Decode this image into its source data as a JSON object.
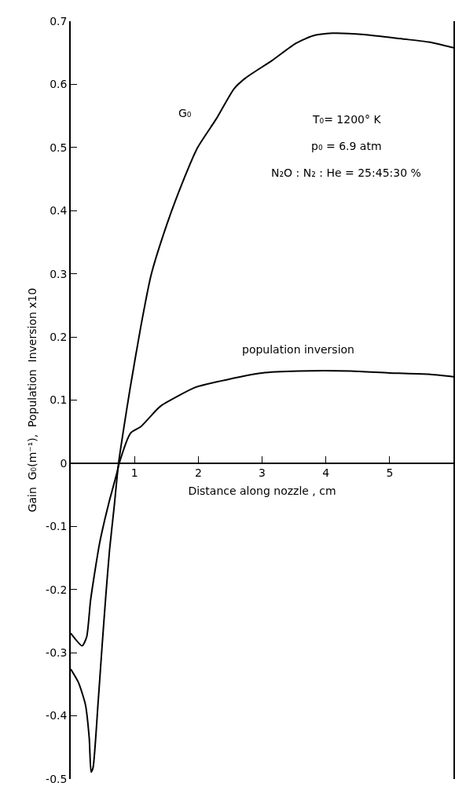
{
  "chart_data": {
    "type": "line",
    "xlabel": "Distance along nozzle , cm",
    "ylabel": "Gain  G₀(m⁻¹),  Population  Inversion x10",
    "xlim": [
      0,
      6
    ],
    "ylim": [
      -0.5,
      0.7
    ],
    "xticks": [
      1,
      2,
      3,
      4,
      5
    ],
    "yticks": [
      0.7,
      0.6,
      0.5,
      0.4,
      0.3,
      0.2,
      0.1,
      0,
      -0.1,
      -0.2,
      -0.3,
      -0.4,
      -0.5
    ],
    "grid": false,
    "legend": false,
    "marker": "none",
    "line_style": "solid",
    "series": [
      {
        "name": "G₀",
        "color": "#000000",
        "x": [
          0,
          0.12,
          0.23,
          0.29,
          0.32,
          0.35,
          0.43,
          0.49,
          0.55,
          0.61,
          0.68,
          0.75,
          0.84,
          0.93,
          1.1,
          1.26,
          1.51,
          1.75,
          1.99,
          2.28,
          2.56,
          2.74,
          3.16,
          3.53,
          3.8,
          4.1,
          4.6,
          5.2,
          5.61,
          6.0
        ],
        "values": [
          -0.326,
          -0.347,
          -0.382,
          -0.435,
          -0.489,
          -0.482,
          -0.378,
          -0.292,
          -0.21,
          -0.136,
          -0.07,
          0,
          0.061,
          0.118,
          0.217,
          0.298,
          0.379,
          0.444,
          0.5,
          0.545,
          0.593,
          0.61,
          0.638,
          0.665,
          0.677,
          0.681,
          0.679,
          0.672,
          0.667,
          0.658
        ]
      },
      {
        "name": "population inversion",
        "color": "#000000",
        "x": [
          0,
          0.18,
          0.25,
          0.31,
          0.37,
          0.45,
          0.53,
          0.61,
          0.72,
          0.76,
          0.94,
          1.1,
          1.35,
          1.43,
          1.95,
          2.34,
          3.0,
          3.57,
          4.39,
          5.0,
          5.61,
          6.0
        ],
        "values": [
          -0.269,
          -0.289,
          -0.275,
          -0.218,
          -0.177,
          -0.128,
          -0.091,
          -0.058,
          -0.017,
          0,
          0.048,
          0.058,
          0.085,
          0.092,
          0.12,
          0.13,
          0.143,
          0.146,
          0.146,
          0.143,
          0.141,
          0.137
        ]
      }
    ],
    "annotations": [
      "T₀= 1200° K",
      "p₀ = 6.9 atm",
      "N₂O : N₂ : He = 25:45:30 %"
    ]
  }
}
